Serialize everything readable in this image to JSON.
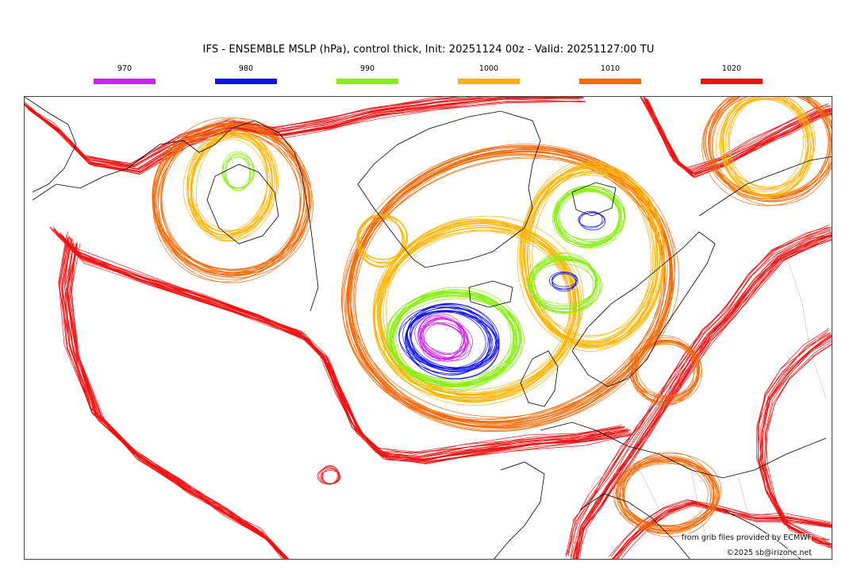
{
  "header": {
    "title": "IFS - ENSEMBLE MSLP (hPa), control thick, Init: 20251124 00z - Valid: 20251127:00 TU"
  },
  "legend": {
    "items": [
      {
        "label": "970",
        "color": "#cc22ee"
      },
      {
        "label": "980",
        "color": "#1010ee"
      },
      {
        "label": "990",
        "color": "#88ee11"
      },
      {
        "label": "1000",
        "color": "#ffb300"
      },
      {
        "label": "1010",
        "color": "#f26a0a"
      },
      {
        "label": "1020",
        "color": "#ee1111"
      }
    ]
  },
  "map": {
    "coastline_color": "#000000",
    "border_color": "#aaaaaa"
  },
  "footer": {
    "provider": "from grib files provided by ECMWF",
    "copyright": "©2025 sb@irizone.net"
  }
}
